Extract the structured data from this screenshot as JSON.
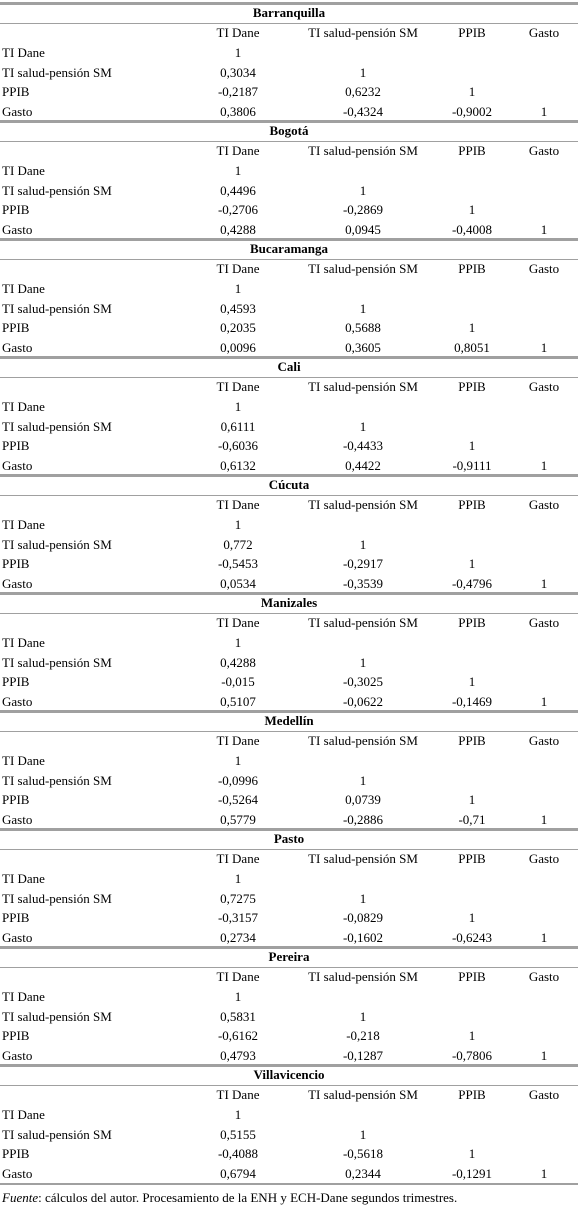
{
  "sections": [
    {
      "city": "Barranquilla",
      "headers": [
        "TI Dane",
        "TI salud-pensión SM",
        "PPIB",
        "Gasto"
      ],
      "rows": [
        {
          "label": "TI Dane",
          "cells": [
            "1"
          ]
        },
        {
          "label": "TI salud-pensión SM",
          "cells": [
            "0,3034",
            "1"
          ]
        },
        {
          "label": "PPIB",
          "cells": [
            "-0,2187",
            "0,6232",
            "1"
          ]
        },
        {
          "label": "Gasto",
          "cells": [
            "0,3806",
            "-0,4324",
            "-0,9002",
            "1"
          ]
        }
      ]
    },
    {
      "city": "Bogotá",
      "headers": [
        "TI Dane",
        "TI salud-pensión SM",
        "PPIB",
        "Gasto"
      ],
      "rows": [
        {
          "label": "TI Dane",
          "cells": [
            "1"
          ]
        },
        {
          "label": "TI salud-pensión SM",
          "cells": [
            "0,4496",
            "1"
          ]
        },
        {
          "label": "PPIB",
          "cells": [
            "-0,2706",
            "-0,2869",
            "1"
          ]
        },
        {
          "label": "Gasto",
          "cells": [
            "0,4288",
            "0,0945",
            "-0,4008",
            "1"
          ]
        }
      ]
    },
    {
      "city": "Bucaramanga",
      "headers": [
        "TI Dane",
        "TI salud-pensión SM",
        "PPIB",
        "Gasto"
      ],
      "rows": [
        {
          "label": "TI Dane",
          "cells": [
            "1"
          ]
        },
        {
          "label": "TI salud-pensión SM",
          "cells": [
            "0,4593",
            "1"
          ]
        },
        {
          "label": "PPIB",
          "cells": [
            "0,2035",
            "0,5688",
            "1"
          ]
        },
        {
          "label": "Gasto",
          "cells": [
            "0,0096",
            "0,3605",
            "0,8051",
            "1"
          ]
        }
      ]
    },
    {
      "city": "Cali",
      "headers": [
        "TI Dane",
        "TI salud-pensión SM",
        "PPIB",
        "Gasto"
      ],
      "rows": [
        {
          "label": "TI Dane",
          "cells": [
            "1"
          ]
        },
        {
          "label": "TI salud-pensión SM",
          "cells": [
            "0,6111",
            "1"
          ]
        },
        {
          "label": "PPIB",
          "cells": [
            "-0,6036",
            "-0,4433",
            "1"
          ]
        },
        {
          "label": "Gasto",
          "cells": [
            "0,6132",
            "0,4422",
            "-0,9111",
            "1"
          ]
        }
      ]
    },
    {
      "city": "Cúcuta",
      "headers": [
        "TI Dane",
        "TI salud-pensión SM",
        "PPIB",
        "Gasto"
      ],
      "rows": [
        {
          "label": "TI Dane",
          "cells": [
            "1"
          ]
        },
        {
          "label": "TI salud-pensión SM",
          "cells": [
            "0,772",
            "1"
          ]
        },
        {
          "label": "PPIB",
          "cells": [
            "-0,5453",
            "-0,2917",
            "1"
          ]
        },
        {
          "label": "Gasto",
          "cells": [
            "0,0534",
            "-0,3539",
            "-0,4796",
            "1"
          ]
        }
      ]
    },
    {
      "city": "Manizales",
      "headers": [
        "TI Dane",
        "TI salud-pensión SM",
        "PPIB",
        "Gasto"
      ],
      "rows": [
        {
          "label": "TI Dane",
          "cells": [
            "1"
          ]
        },
        {
          "label": "TI salud-pensión SM",
          "cells": [
            "0,4288",
            "1"
          ]
        },
        {
          "label": "PPIB",
          "cells": [
            "-0,015",
            "-0,3025",
            "1"
          ]
        },
        {
          "label": "Gasto",
          "cells": [
            "0,5107",
            "-0,0622",
            "-0,1469",
            "1"
          ]
        }
      ]
    },
    {
      "city": "Medellín",
      "headers": [
        "TI Dane",
        "TI salud-pensión SM",
        "PPIB",
        "Gasto"
      ],
      "rows": [
        {
          "label": "TI Dane",
          "cells": [
            "1"
          ]
        },
        {
          "label": "TI salud-pensión SM",
          "cells": [
            "-0,0996",
            "1"
          ]
        },
        {
          "label": "PPIB",
          "cells": [
            "-0,5264",
            "0,0739",
            "1"
          ]
        },
        {
          "label": "Gasto",
          "cells": [
            "0,5779",
            "-0,2886",
            "-0,71",
            "1"
          ]
        }
      ]
    },
    {
      "city": "Pasto",
      "headers": [
        "TI Dane",
        "TI salud-pensión SM",
        "PPIB",
        "Gasto"
      ],
      "rows": [
        {
          "label": "TI Dane",
          "cells": [
            "1"
          ]
        },
        {
          "label": "TI salud-pensión SM",
          "cells": [
            "0,7275",
            "1"
          ]
        },
        {
          "label": "PPIB",
          "cells": [
            "-0,3157",
            "-0,0829",
            "1"
          ]
        },
        {
          "label": "Gasto",
          "cells": [
            "0,2734",
            "-0,1602",
            "-0,6243",
            "1"
          ]
        }
      ]
    },
    {
      "city": "Pereira",
      "headers": [
        "TI Dane",
        "TI salud-pensión SM",
        "PPIB",
        "Gasto"
      ],
      "rows": [
        {
          "label": "TI Dane",
          "cells": [
            "1"
          ]
        },
        {
          "label": "TI salud-pensión SM",
          "cells": [
            "0,5831",
            "1"
          ]
        },
        {
          "label": "PPIB",
          "cells": [
            "-0,6162",
            "-0,218",
            "1"
          ]
        },
        {
          "label": "Gasto",
          "cells": [
            "0,4793",
            "-0,1287",
            "-0,7806",
            "1"
          ]
        }
      ]
    },
    {
      "city": "Villavicencio",
      "headers": [
        "TI Dane",
        "TI salud-pensión SM",
        "PPIB",
        "Gasto"
      ],
      "rows": [
        {
          "label": "TI Dane",
          "cells": [
            "1"
          ]
        },
        {
          "label": "TI salud-pensión SM",
          "cells": [
            "0,5155",
            "1"
          ]
        },
        {
          "label": "PPIB",
          "cells": [
            "-0,4088",
            "-0,5618",
            "1"
          ]
        },
        {
          "label": "Gasto",
          "cells": [
            "0,6794",
            "0,2344",
            "-0,1291",
            "1"
          ]
        }
      ]
    }
  ],
  "footnote": {
    "label": "Fuente",
    "text": ": cálculos del autor. Procesamiento de la ENH y ECH-Dane segundos trimestres."
  }
}
